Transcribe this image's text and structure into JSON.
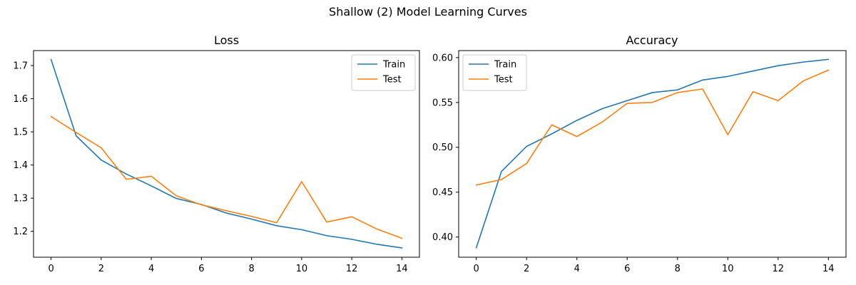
{
  "figure": {
    "suptitle": "Shallow (2) Model Learning Curves"
  },
  "colors": {
    "train": "#1f77b4",
    "test": "#ff7f0e",
    "axes": "#000000",
    "legend_border": "#cccccc"
  },
  "chart_data": [
    {
      "type": "line",
      "title": "Loss",
      "xlabel": "",
      "ylabel": "",
      "x": [
        0,
        1,
        2,
        3,
        4,
        5,
        6,
        7,
        8,
        9,
        10,
        11,
        12,
        13,
        14
      ],
      "xlim": [
        -0.7,
        14.7
      ],
      "ylim": [
        1.122,
        1.745
      ],
      "xticks": [
        0,
        2,
        4,
        6,
        8,
        10,
        12,
        14
      ],
      "yticks": [
        1.2,
        1.3,
        1.4,
        1.5,
        1.6,
        1.7
      ],
      "ytick_labels": [
        "1.2",
        "1.3",
        "1.4",
        "1.5",
        "1.6",
        "1.7"
      ],
      "grid": false,
      "legend": "top-right",
      "series": [
        {
          "name": "Train",
          "color_key": "train",
          "values": [
            1.718,
            1.488,
            1.415,
            1.373,
            1.337,
            1.299,
            1.281,
            1.255,
            1.237,
            1.217,
            1.205,
            1.187,
            1.176,
            1.161,
            1.15
          ]
        },
        {
          "name": "Test",
          "color_key": "test",
          "values": [
            1.546,
            1.498,
            1.452,
            1.357,
            1.366,
            1.307,
            1.28,
            1.262,
            1.245,
            1.226,
            1.35,
            1.228,
            1.244,
            1.207,
            1.179
          ]
        }
      ]
    },
    {
      "type": "line",
      "title": "Accuracy",
      "xlabel": "",
      "ylabel": "",
      "x": [
        0,
        1,
        2,
        3,
        4,
        5,
        6,
        7,
        8,
        9,
        10,
        11,
        12,
        13,
        14
      ],
      "xlim": [
        -0.7,
        14.7
      ],
      "ylim": [
        0.3775,
        0.6078
      ],
      "xticks": [
        0,
        2,
        4,
        6,
        8,
        10,
        12,
        14
      ],
      "yticks": [
        0.4,
        0.45,
        0.5,
        0.55,
        0.6
      ],
      "ytick_labels": [
        "0.40",
        "0.45",
        "0.50",
        "0.55",
        "0.60"
      ],
      "grid": false,
      "legend": "top-left",
      "series": [
        {
          "name": "Train",
          "color_key": "train",
          "values": [
            0.388,
            0.473,
            0.501,
            0.515,
            0.53,
            0.543,
            0.552,
            0.561,
            0.564,
            0.575,
            0.579,
            0.585,
            0.591,
            0.595,
            0.598
          ]
        },
        {
          "name": "Test",
          "color_key": "test",
          "values": [
            0.458,
            0.464,
            0.482,
            0.525,
            0.512,
            0.528,
            0.549,
            0.55,
            0.561,
            0.565,
            0.514,
            0.562,
            0.552,
            0.574,
            0.586
          ]
        }
      ]
    }
  ]
}
